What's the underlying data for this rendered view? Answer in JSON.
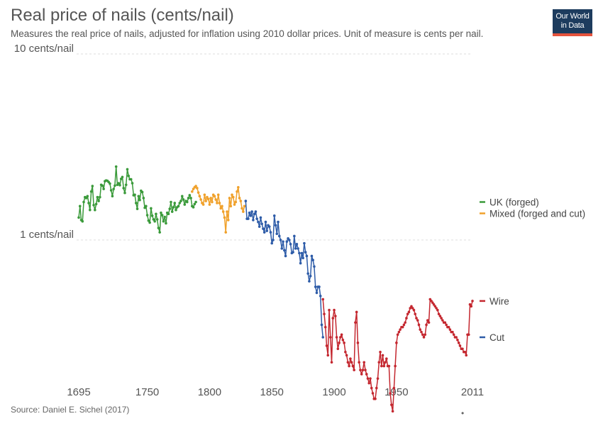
{
  "header": {
    "title": "Real price of nails (cents/nail)",
    "subtitle": "Measures the real price of nails, adjusted for inflation using 2010 dollar prices. Unit of measure is cents per nail."
  },
  "logo": {
    "line1": "Our World",
    "line2": "in Data",
    "bg_color": "#1d3c5e",
    "accent_color": "#e5533d"
  },
  "footer": {
    "source": "Source: Daniel E. Sichel (2017)",
    "dot": "•"
  },
  "chart_data": {
    "type": "line",
    "title": "Real price of nails (cents/nail)",
    "xlabel": "",
    "ylabel": "",
    "y_scale": "log",
    "xlim": [
      1695,
      2011
    ],
    "ylim": [
      0.1,
      10
    ],
    "x_ticks": [
      "1695",
      "1750",
      "1800",
      "1850",
      "1900",
      "1950",
      "2011"
    ],
    "x_tick_values": [
      1695,
      1750,
      1800,
      1850,
      1900,
      1950,
      2011
    ],
    "y_ticks": [
      {
        "value": 1,
        "label": "1 cents/nail"
      },
      {
        "value": 10,
        "label": "10 cents/nail"
      }
    ],
    "grid": "horizontal dashed",
    "legend": "right, labels at series ends",
    "series": [
      {
        "name": "UK (forged)",
        "color": "#3a9a3a",
        "x": [
          1695,
          1696,
          1697,
          1698,
          1699,
          1700,
          1701,
          1702,
          1703,
          1704,
          1705,
          1706,
          1707,
          1708,
          1709,
          1710,
          1711,
          1712,
          1713,
          1714,
          1715,
          1716,
          1717,
          1718,
          1719,
          1720,
          1721,
          1722,
          1723,
          1724,
          1725,
          1726,
          1727,
          1728,
          1729,
          1730,
          1731,
          1732,
          1733,
          1734,
          1735,
          1736,
          1737,
          1738,
          1739,
          1740,
          1741,
          1742,
          1743,
          1744,
          1745,
          1746,
          1747,
          1748,
          1749,
          1750,
          1751,
          1752,
          1753,
          1754,
          1755,
          1756,
          1757,
          1758,
          1759,
          1760,
          1761,
          1762,
          1763,
          1764,
          1765,
          1766,
          1767,
          1768,
          1769,
          1770,
          1771,
          1772,
          1773,
          1774,
          1775,
          1776,
          1777,
          1778,
          1779,
          1780,
          1781,
          1782,
          1783,
          1784,
          1785,
          1786,
          1787,
          1788,
          1789
        ],
        "y": [
          1.32,
          1.52,
          1.28,
          1.26,
          1.6,
          1.7,
          1.68,
          1.72,
          1.58,
          1.45,
          1.82,
          1.95,
          1.54,
          1.45,
          1.56,
          1.7,
          1.62,
          1.7,
          1.98,
          1.96,
          1.88,
          2.07,
          2.09,
          2.08,
          2.05,
          2.01,
          1.85,
          1.72,
          1.88,
          1.96,
          2.48,
          1.98,
          2.02,
          1.97,
          2.13,
          2.18,
          1.9,
          1.79,
          1.98,
          2.4,
          2.21,
          2.12,
          2.12,
          2.02,
          1.74,
          1.75,
          1.58,
          1.47,
          1.72,
          1.64,
          1.84,
          1.81,
          1.68,
          1.49,
          1.52,
          1.36,
          1.27,
          1.24,
          1.48,
          1.35,
          1.29,
          1.26,
          1.38,
          1.29,
          1.16,
          1.1,
          1.4,
          1.36,
          1.26,
          1.33,
          1.23,
          1.4,
          1.38,
          1.47,
          1.6,
          1.42,
          1.5,
          1.58,
          1.45,
          1.5,
          1.52,
          1.58,
          1.62,
          1.72,
          1.65,
          1.55,
          1.62,
          1.6,
          1.68,
          1.74,
          1.68,
          1.52,
          1.5,
          1.56,
          1.6
        ]
      },
      {
        "name": "Mixed (forged and cut)",
        "color": "#f0a12b",
        "x": [
          1786,
          1787,
          1788,
          1789,
          1790,
          1791,
          1792,
          1793,
          1794,
          1795,
          1796,
          1797,
          1798,
          1799,
          1800,
          1801,
          1802,
          1803,
          1804,
          1805,
          1806,
          1807,
          1808,
          1809,
          1810,
          1811,
          1812,
          1813,
          1814,
          1815,
          1816,
          1817,
          1818,
          1819,
          1820,
          1821,
          1822,
          1823,
          1824,
          1825,
          1826,
          1827,
          1828
        ],
        "y": [
          1.82,
          1.88,
          1.92,
          1.95,
          1.9,
          1.8,
          1.72,
          1.65,
          1.58,
          1.55,
          1.75,
          1.62,
          1.7,
          1.66,
          1.55,
          1.68,
          1.6,
          1.75,
          1.72,
          1.65,
          1.58,
          1.75,
          1.58,
          1.48,
          1.52,
          1.42,
          1.32,
          1.1,
          1.42,
          1.28,
          1.68,
          1.52,
          1.75,
          1.7,
          1.55,
          1.6,
          1.82,
          1.92,
          1.68,
          1.62,
          1.48,
          1.42,
          1.52
        ]
      },
      {
        "name": "Cut",
        "color": "#2e5ca8",
        "x": [
          1829,
          1830,
          1831,
          1832,
          1833,
          1834,
          1835,
          1836,
          1837,
          1838,
          1839,
          1840,
          1841,
          1842,
          1843,
          1844,
          1845,
          1846,
          1847,
          1848,
          1849,
          1850,
          1851,
          1852,
          1853,
          1854,
          1855,
          1856,
          1857,
          1858,
          1859,
          1860,
          1861,
          1862,
          1863,
          1864,
          1865,
          1866,
          1867,
          1868,
          1869,
          1870,
          1871,
          1872,
          1873,
          1874,
          1875,
          1876,
          1877,
          1878,
          1879,
          1880,
          1881,
          1882,
          1883,
          1884,
          1885,
          1886,
          1887,
          1888,
          1889,
          1890,
          1891
        ],
        "y": [
          1.62,
          1.3,
          1.3,
          1.4,
          1.35,
          1.42,
          1.28,
          1.38,
          1.42,
          1.3,
          1.25,
          1.18,
          1.32,
          1.22,
          1.15,
          1.1,
          1.25,
          1.12,
          1.2,
          1.18,
          1.1,
          0.96,
          1.0,
          1.35,
          1.2,
          1.08,
          1.25,
          1.05,
          1.0,
          0.9,
          0.98,
          0.88,
          0.82,
          0.98,
          1.02,
          1.0,
          0.95,
          0.85,
          0.86,
          1.05,
          0.9,
          0.95,
          0.9,
          0.85,
          0.75,
          0.85,
          0.8,
          0.96,
          0.86,
          0.82,
          0.66,
          0.6,
          0.64,
          0.82,
          0.78,
          0.72,
          0.56,
          0.52,
          0.56,
          0.56,
          0.5,
          0.35,
          0.3
        ]
      },
      {
        "name": "Wire",
        "color": "#c4272f",
        "x": [
          1891,
          1892,
          1893,
          1894,
          1895,
          1896,
          1897,
          1898,
          1899,
          1900,
          1901,
          1902,
          1903,
          1904,
          1905,
          1906,
          1907,
          1908,
          1909,
          1910,
          1911,
          1912,
          1913,
          1914,
          1915,
          1916,
          1917,
          1918,
          1919,
          1920,
          1921,
          1922,
          1923,
          1924,
          1925,
          1926,
          1927,
          1928,
          1929,
          1930,
          1931,
          1932,
          1933,
          1934,
          1935,
          1936,
          1937,
          1938,
          1939,
          1940,
          1941,
          1942,
          1943,
          1944,
          1945,
          1946,
          1947,
          1948,
          1949,
          1950,
          1951,
          1952,
          1953,
          1954,
          1955,
          1956,
          1957,
          1958,
          1959,
          1960,
          1961,
          1962,
          1963,
          1964,
          1965,
          1966,
          1967,
          1968,
          1969,
          1970,
          1971,
          1972,
          1973,
          1974,
          1975,
          1976,
          1977,
          1978,
          1979,
          1980,
          1981,
          1982,
          1983,
          1984,
          1985,
          1986,
          1987,
          1988,
          1989,
          1990,
          1991,
          1992,
          1993,
          1994,
          1995,
          1996,
          1997,
          1998,
          1999,
          2000,
          2001,
          2002,
          2003,
          2004,
          2005,
          2006,
          2007,
          2008,
          2009,
          2010,
          2011
        ],
        "y": [
          0.48,
          0.4,
          0.34,
          0.27,
          0.24,
          0.42,
          0.3,
          0.22,
          0.38,
          0.42,
          0.39,
          0.3,
          0.26,
          0.28,
          0.3,
          0.31,
          0.29,
          0.28,
          0.25,
          0.24,
          0.22,
          0.21,
          0.23,
          0.22,
          0.21,
          0.2,
          0.36,
          0.41,
          0.28,
          0.22,
          0.2,
          0.19,
          0.2,
          0.22,
          0.2,
          0.19,
          0.18,
          0.17,
          0.18,
          0.16,
          0.15,
          0.14,
          0.14,
          0.16,
          0.18,
          0.22,
          0.25,
          0.21,
          0.24,
          0.21,
          0.22,
          0.23,
          0.21,
          0.21,
          0.15,
          0.13,
          0.12,
          0.16,
          0.21,
          0.28,
          0.31,
          0.32,
          0.33,
          0.34,
          0.34,
          0.35,
          0.36,
          0.38,
          0.4,
          0.41,
          0.43,
          0.44,
          0.43,
          0.42,
          0.4,
          0.38,
          0.37,
          0.35,
          0.33,
          0.32,
          0.31,
          0.3,
          0.31,
          0.35,
          0.37,
          0.36,
          0.48,
          0.47,
          0.46,
          0.45,
          0.44,
          0.43,
          0.42,
          0.4,
          0.39,
          0.38,
          0.37,
          0.36,
          0.36,
          0.35,
          0.34,
          0.34,
          0.33,
          0.32,
          0.32,
          0.31,
          0.3,
          0.3,
          0.29,
          0.28,
          0.27,
          0.26,
          0.26,
          0.25,
          0.25,
          0.24,
          0.31,
          0.31,
          0.45,
          0.44,
          0.47
        ]
      }
    ],
    "end_labels": [
      {
        "series": "Mixed (forged and cut)",
        "label": "Mixed (forged and cut)"
      },
      {
        "series": "UK (forged)",
        "label": "UK (forged)"
      },
      {
        "series": "Wire",
        "label": "Wire"
      },
      {
        "series": "Cut",
        "label": "Cut"
      }
    ]
  }
}
